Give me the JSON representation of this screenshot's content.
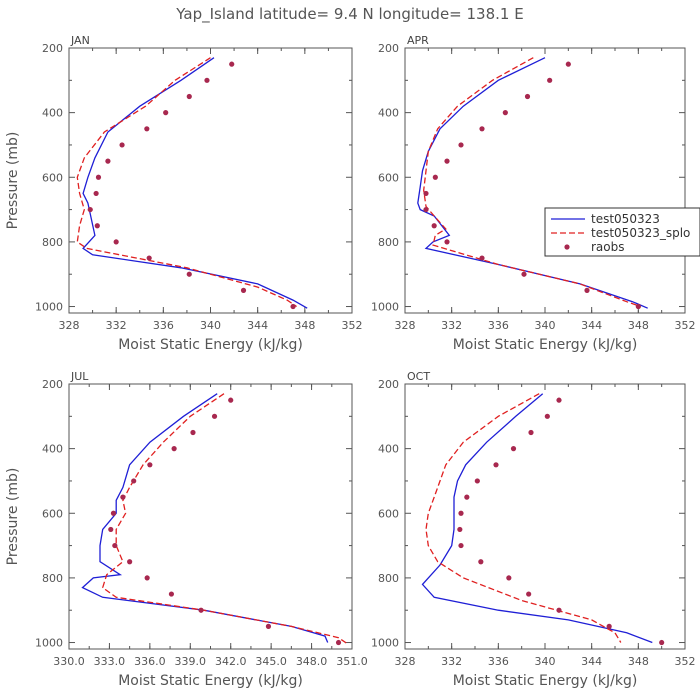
{
  "figure": {
    "title": "Yap_Island  latitude= 9.4 N longitude= 138.1 E",
    "line_color_model": "#1f1fd6",
    "line_color_sp": "#e02020",
    "dot_color": "#a8284f",
    "axis_color": "#555555"
  },
  "chart_data": [
    {
      "type": "line",
      "panel": "JAN",
      "title": "JAN",
      "xlabel": "Moist Static Energy (kJ/kg)",
      "ylabel": "Pressure (mb)",
      "xlim": [
        328,
        352
      ],
      "ylim": [
        200,
        1020
      ],
      "y_reversed": true,
      "xticks": [
        "328",
        "332",
        "336",
        "340",
        "344",
        "348",
        "352"
      ],
      "yticks": [
        "200",
        "400",
        "600",
        "800",
        "1000"
      ],
      "xtick_values": [
        328,
        332,
        336,
        340,
        344,
        348,
        352
      ],
      "ytick_values": [
        200,
        400,
        600,
        800,
        1000
      ],
      "grid": false,
      "series": [
        {
          "name": "test050323",
          "style": "solid",
          "x": [
            340.3,
            337.5,
            334.0,
            331.3,
            330.2,
            329.6,
            329.2,
            329.6,
            330.2,
            329.2,
            330.0,
            337.5,
            344.0,
            347.0,
            348.2
          ],
          "y": [
            230,
            300,
            380,
            460,
            540,
            600,
            650,
            680,
            780,
            820,
            840,
            880,
            930,
            980,
            1005
          ]
        },
        {
          "name": "test050323_spl",
          "style": "dashed",
          "x": [
            340.0,
            337.0,
            334.5,
            331.0,
            329.3,
            328.7,
            328.9,
            329.3,
            328.9,
            328.7,
            329.5,
            338.0,
            344.0,
            346.5,
            347.3
          ],
          "y": [
            230,
            300,
            380,
            460,
            540,
            600,
            650,
            700,
            750,
            800,
            820,
            880,
            940,
            980,
            1000
          ]
        },
        {
          "name": "raobs",
          "style": "markers",
          "x": [
            341.8,
            339.7,
            338.2,
            336.2,
            334.6,
            332.5,
            331.3,
            330.5,
            330.3,
            329.8,
            330.4,
            332.0,
            334.8,
            338.2,
            342.8,
            347.0
          ],
          "y": [
            250,
            300,
            350,
            400,
            450,
            500,
            550,
            600,
            650,
            700,
            750,
            800,
            850,
            900,
            950,
            1000
          ]
        }
      ]
    },
    {
      "type": "line",
      "panel": "APR",
      "title": "APR",
      "xlabel": "Moist Static Energy (kJ/kg)",
      "ylabel": "",
      "xlim": [
        328,
        352
      ],
      "ylim": [
        200,
        1020
      ],
      "y_reversed": true,
      "xticks": [
        "328",
        "332",
        "336",
        "340",
        "344",
        "348",
        "352"
      ],
      "yticks": [
        "200",
        "400",
        "600",
        "800",
        "1000"
      ],
      "xtick_values": [
        328,
        332,
        336,
        340,
        344,
        348,
        352
      ],
      "ytick_values": [
        200,
        400,
        600,
        800,
        1000
      ],
      "grid": false,
      "legend": "right",
      "legend_entries": [
        "test050323",
        "test050323_splo",
        "raobs"
      ],
      "series": [
        {
          "name": "test050323",
          "style": "solid",
          "x": [
            340.0,
            336.0,
            333.0,
            331.0,
            330.0,
            329.5,
            329.3,
            329.1,
            329.3,
            330.5,
            331.8,
            330.4,
            329.8,
            336.0,
            343.0,
            347.5,
            348.8
          ],
          "y": [
            230,
            300,
            380,
            450,
            520,
            580,
            630,
            680,
            700,
            720,
            780,
            800,
            820,
            870,
            930,
            985,
            1005
          ]
        },
        {
          "name": "test050323_splo",
          "style": "dashed",
          "x": [
            339.0,
            335.5,
            332.5,
            330.8,
            330.0,
            329.8,
            329.6,
            329.8,
            330.5,
            331.5,
            330.6,
            330.4,
            336.0,
            343.0,
            347.0,
            348.2
          ],
          "y": [
            230,
            300,
            380,
            450,
            520,
            580,
            640,
            690,
            720,
            760,
            780,
            810,
            870,
            930,
            985,
            1000
          ]
        },
        {
          "name": "raobs",
          "style": "markers",
          "x": [
            342.0,
            340.4,
            338.5,
            336.6,
            334.6,
            332.8,
            331.6,
            330.6,
            329.8,
            329.8,
            330.5,
            331.6,
            334.6,
            338.2,
            343.6,
            348.0
          ],
          "y": [
            250,
            300,
            350,
            400,
            450,
            500,
            550,
            600,
            650,
            700,
            750,
            800,
            850,
            900,
            950,
            1000
          ]
        }
      ]
    },
    {
      "type": "line",
      "panel": "JUL",
      "title": "JUL",
      "xlabel": "Moist Static Energy (kJ/kg)",
      "ylabel": "Pressure (mb)",
      "xlim": [
        330.0,
        351.0
      ],
      "ylim": [
        200,
        1020
      ],
      "y_reversed": true,
      "xticks": [
        "330.0",
        "333.0",
        "336.0",
        "339.0",
        "342.0",
        "345.0",
        "348.0",
        "351.0"
      ],
      "yticks": [
        "200",
        "400",
        "600",
        "800",
        "1000"
      ],
      "xtick_values": [
        330.0,
        333.0,
        336.0,
        339.0,
        342.0,
        345.0,
        348.0,
        351.0
      ],
      "ytick_values": [
        200,
        400,
        600,
        800,
        1000
      ],
      "xtick_prefix": "330.0",
      "grid": false,
      "series": [
        {
          "name": "test050323",
          "style": "solid",
          "x": [
            341.0,
            338.5,
            336.0,
            334.5,
            334.0,
            333.5,
            333.5,
            332.5,
            332.3,
            332.3,
            333.8,
            331.8,
            331.0,
            332.5,
            340.0,
            346.5,
            349.0,
            349.2
          ],
          "y": [
            230,
            300,
            380,
            450,
            520,
            560,
            600,
            650,
            700,
            750,
            790,
            800,
            830,
            860,
            900,
            950,
            980,
            1000
          ]
        },
        {
          "name": "test050323_spl",
          "style": "dashed",
          "x": [
            341.5,
            339.0,
            337.0,
            335.5,
            334.5,
            334.0,
            334.2,
            333.5,
            333.5,
            334.0,
            332.8,
            332.5,
            333.5,
            340.0,
            346.5,
            350.0,
            350.7
          ],
          "y": [
            230,
            300,
            380,
            450,
            520,
            560,
            600,
            650,
            700,
            750,
            790,
            830,
            860,
            900,
            950,
            985,
            1005
          ]
        },
        {
          "name": "raobs",
          "style": "markers",
          "x": [
            342.0,
            340.8,
            339.2,
            337.8,
            336.0,
            334.8,
            334.0,
            333.3,
            333.1,
            333.4,
            334.5,
            335.8,
            337.6,
            339.8,
            344.8,
            350.0
          ],
          "y": [
            250,
            300,
            350,
            400,
            450,
            500,
            550,
            600,
            650,
            700,
            750,
            800,
            850,
            900,
            950,
            1000
          ]
        }
      ]
    },
    {
      "type": "line",
      "panel": "OCT",
      "title": "OCT",
      "xlabel": "Moist Static Energy (kJ/kg)",
      "ylabel": "",
      "xlim": [
        328,
        352
      ],
      "ylim": [
        200,
        1020
      ],
      "y_reversed": true,
      "xticks": [
        "328",
        "332",
        "336",
        "340",
        "344",
        "348",
        "352"
      ],
      "yticks": [
        "200",
        "400",
        "600",
        "800",
        "1000"
      ],
      "xtick_values": [
        328,
        332,
        336,
        340,
        344,
        348,
        352
      ],
      "ytick_values": [
        200,
        400,
        600,
        800,
        1000
      ],
      "grid": false,
      "series": [
        {
          "name": "test050323",
          "style": "solid",
          "x": [
            339.8,
            337.5,
            335.0,
            333.2,
            332.5,
            332.2,
            332.2,
            332.2,
            332.0,
            331.0,
            329.5,
            330.5,
            336.0,
            342.0,
            347.0,
            349.2
          ],
          "y": [
            230,
            300,
            380,
            450,
            500,
            550,
            600,
            650,
            700,
            760,
            820,
            860,
            900,
            930,
            970,
            1000
          ]
        },
        {
          "name": "test050323_spl",
          "style": "dashed",
          "x": [
            339.5,
            336.0,
            333.0,
            331.5,
            331.0,
            330.5,
            330.0,
            329.8,
            330.0,
            330.8,
            333.0,
            338.0,
            344.0,
            346.0,
            346.5
          ],
          "y": [
            230,
            300,
            380,
            450,
            500,
            550,
            600,
            650,
            700,
            750,
            800,
            870,
            930,
            970,
            1000
          ]
        },
        {
          "name": "raobs",
          "style": "markers",
          "x": [
            341.2,
            340.2,
            338.8,
            337.3,
            335.8,
            334.2,
            333.3,
            332.8,
            332.7,
            332.8,
            334.5,
            336.9,
            338.6,
            341.2,
            345.5,
            350.0
          ],
          "y": [
            250,
            300,
            350,
            400,
            450,
            500,
            550,
            600,
            650,
            700,
            750,
            800,
            850,
            900,
            950,
            1000
          ]
        }
      ]
    }
  ]
}
